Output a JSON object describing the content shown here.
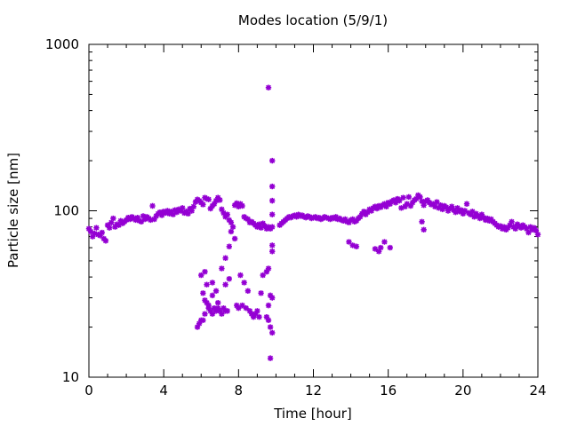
{
  "chart_data": {
    "type": "scatter",
    "title": "Modes location (5/9/1)",
    "xlabel": "Time [hour]",
    "ylabel": "Particle size [nm]",
    "xlim": [
      0,
      24
    ],
    "ylim": [
      10,
      1000
    ],
    "yscale": "log",
    "grid": false,
    "legend": "none",
    "marker_color": "#9400d3",
    "x_ticks": [
      {
        "value": 0,
        "label": "0"
      },
      {
        "value": 4,
        "label": "4"
      },
      {
        "value": 8,
        "label": "8"
      },
      {
        "value": 12,
        "label": "12"
      },
      {
        "value": 16,
        "label": "16"
      },
      {
        "value": 20,
        "label": "20"
      },
      {
        "value": 24,
        "label": "24"
      }
    ],
    "y_ticks": [
      {
        "value": 10,
        "label": "10"
      },
      {
        "value": 100,
        "label": "100"
      },
      {
        "value": 1000,
        "label": "1000"
      }
    ],
    "series": [
      {
        "points": [
          [
            0.0,
            78
          ],
          [
            0.1,
            75
          ],
          [
            0.2,
            70
          ],
          [
            0.3,
            73
          ],
          [
            0.4,
            79
          ],
          [
            0.5,
            72
          ],
          [
            0.6,
            71
          ],
          [
            0.7,
            74
          ],
          [
            0.8,
            68
          ],
          [
            0.9,
            66
          ],
          [
            1.0,
            82
          ],
          [
            1.1,
            79
          ],
          [
            1.2,
            85
          ],
          [
            1.3,
            90
          ],
          [
            1.4,
            80
          ],
          [
            1.5,
            83
          ],
          [
            1.6,
            82
          ],
          [
            1.7,
            87
          ],
          [
            1.8,
            84
          ],
          [
            1.9,
            86
          ],
          [
            2.0,
            88
          ],
          [
            2.1,
            91
          ],
          [
            2.2,
            89
          ],
          [
            2.3,
            92
          ],
          [
            2.4,
            90
          ],
          [
            2.5,
            88
          ],
          [
            2.6,
            91
          ],
          [
            2.7,
            87
          ],
          [
            2.8,
            86
          ],
          [
            2.9,
            93
          ],
          [
            3.0,
            89
          ],
          [
            3.1,
            92
          ],
          [
            3.2,
            90
          ],
          [
            3.3,
            88
          ],
          [
            3.4,
            107
          ],
          [
            3.5,
            89
          ],
          [
            3.6,
            93
          ],
          [
            3.7,
            96
          ],
          [
            3.8,
            98
          ],
          [
            3.9,
            94
          ],
          [
            4.0,
            99
          ],
          [
            4.1,
            97
          ],
          [
            4.2,
            100
          ],
          [
            4.3,
            96
          ],
          [
            4.4,
            99
          ],
          [
            4.5,
            95
          ],
          [
            4.6,
            101
          ],
          [
            4.7,
            98
          ],
          [
            4.8,
            102
          ],
          [
            4.9,
            100
          ],
          [
            5.0,
            104
          ],
          [
            5.1,
            97
          ],
          [
            5.2,
            99
          ],
          [
            5.3,
            96
          ],
          [
            5.4,
            103
          ],
          [
            5.5,
            100
          ],
          [
            5.6,
            106
          ],
          [
            5.7,
            113
          ],
          [
            5.8,
            117
          ],
          [
            5.9,
            115
          ],
          [
            6.0,
            112
          ],
          [
            6.1,
            109
          ],
          [
            6.2,
            120
          ],
          [
            6.3,
            118
          ],
          [
            6.4,
            117
          ],
          [
            6.5,
            103
          ],
          [
            6.6,
            107
          ],
          [
            6.7,
            110
          ],
          [
            6.8,
            115
          ],
          [
            6.9,
            120
          ],
          [
            7.0,
            116
          ],
          [
            7.1,
            102
          ],
          [
            7.2,
            97
          ],
          [
            7.3,
            92
          ],
          [
            7.4,
            95
          ],
          [
            7.5,
            88
          ],
          [
            7.6,
            85
          ],
          [
            7.7,
            80
          ],
          [
            7.8,
            108
          ],
          [
            7.9,
            111
          ],
          [
            8.0,
            106
          ],
          [
            8.1,
            110
          ],
          [
            8.2,
            107
          ],
          [
            8.3,
            92
          ],
          [
            8.4,
            90
          ],
          [
            8.5,
            89
          ],
          [
            8.6,
            85
          ],
          [
            8.7,
            86
          ],
          [
            8.8,
            84
          ],
          [
            8.9,
            82
          ],
          [
            9.0,
            80
          ],
          [
            9.1,
            83
          ],
          [
            9.2,
            79
          ],
          [
            9.3,
            84
          ],
          [
            9.4,
            81
          ],
          [
            9.5,
            78
          ],
          [
            9.6,
            80
          ],
          [
            9.7,
            78
          ],
          [
            9.8,
            80
          ],
          [
            10.2,
            82
          ],
          [
            10.3,
            84
          ],
          [
            10.4,
            86
          ],
          [
            10.5,
            88
          ],
          [
            10.6,
            90
          ],
          [
            10.7,
            92
          ],
          [
            10.8,
            91
          ],
          [
            10.9,
            93
          ],
          [
            11.0,
            94
          ],
          [
            11.1,
            92
          ],
          [
            11.2,
            95
          ],
          [
            11.3,
            93
          ],
          [
            11.4,
            94
          ],
          [
            11.5,
            92
          ],
          [
            11.6,
            91
          ],
          [
            11.7,
            93
          ],
          [
            11.8,
            92
          ],
          [
            11.9,
            90
          ],
          [
            12.0,
            91
          ],
          [
            12.1,
            92
          ],
          [
            12.2,
            90
          ],
          [
            12.3,
            91
          ],
          [
            12.4,
            89
          ],
          [
            12.5,
            90
          ],
          [
            12.6,
            92
          ],
          [
            12.7,
            91
          ],
          [
            12.8,
            90
          ],
          [
            12.9,
            89
          ],
          [
            13.0,
            91
          ],
          [
            13.1,
            90
          ],
          [
            13.2,
            92
          ],
          [
            13.3,
            89
          ],
          [
            13.4,
            90
          ],
          [
            13.5,
            88
          ],
          [
            13.6,
            87
          ],
          [
            13.7,
            89
          ],
          [
            13.8,
            86
          ],
          [
            13.9,
            85
          ],
          [
            14.0,
            88
          ],
          [
            14.1,
            89
          ],
          [
            14.2,
            86
          ],
          [
            14.3,
            87
          ],
          [
            14.4,
            90
          ],
          [
            14.5,
            92
          ],
          [
            14.6,
            96
          ],
          [
            14.7,
            99
          ],
          [
            14.8,
            95
          ],
          [
            14.9,
            98
          ],
          [
            15.0,
            102
          ],
          [
            15.1,
            100
          ],
          [
            15.2,
            104
          ],
          [
            15.3,
            106
          ],
          [
            15.4,
            103
          ],
          [
            15.5,
            107
          ],
          [
            15.6,
            105
          ],
          [
            15.7,
            108
          ],
          [
            15.8,
            110
          ],
          [
            15.9,
            106
          ],
          [
            16.0,
            112
          ],
          [
            16.1,
            110
          ],
          [
            16.2,
            114
          ],
          [
            16.3,
            116
          ],
          [
            16.4,
            112
          ],
          [
            16.5,
            118
          ],
          [
            16.6,
            115
          ],
          [
            16.7,
            104
          ],
          [
            16.8,
            120
          ],
          [
            16.9,
            106
          ],
          [
            17.0,
            110
          ],
          [
            17.1,
            121
          ],
          [
            17.2,
            107
          ],
          [
            17.3,
            112
          ],
          [
            17.4,
            116
          ],
          [
            17.5,
            118
          ],
          [
            17.6,
            124
          ],
          [
            17.7,
            121
          ],
          [
            17.8,
            114
          ],
          [
            17.9,
            108
          ],
          [
            18.0,
            114
          ],
          [
            18.1,
            116
          ],
          [
            18.2,
            112
          ],
          [
            18.3,
            109
          ],
          [
            18.4,
            110
          ],
          [
            18.5,
            106
          ],
          [
            18.6,
            113
          ],
          [
            18.7,
            104
          ],
          [
            18.8,
            108
          ],
          [
            18.9,
            102
          ],
          [
            19.0,
            107
          ],
          [
            19.1,
            105
          ],
          [
            19.2,
            100
          ],
          [
            19.3,
            103
          ],
          [
            19.4,
            106
          ],
          [
            19.5,
            101
          ],
          [
            19.6,
            98
          ],
          [
            19.7,
            104
          ],
          [
            19.8,
            99
          ],
          [
            19.9,
            101
          ],
          [
            20.0,
            96
          ],
          [
            20.1,
            100
          ],
          [
            20.2,
            110
          ],
          [
            20.3,
            97
          ],
          [
            20.4,
            95
          ],
          [
            20.5,
            99
          ],
          [
            20.6,
            92
          ],
          [
            20.7,
            96
          ],
          [
            20.8,
            93
          ],
          [
            20.9,
            90
          ],
          [
            21.0,
            95
          ],
          [
            21.1,
            91
          ],
          [
            21.2,
            88
          ],
          [
            21.3,
            90
          ],
          [
            21.4,
            87
          ],
          [
            21.5,
            89
          ],
          [
            21.6,
            86
          ],
          [
            21.7,
            84
          ],
          [
            21.8,
            82
          ],
          [
            21.9,
            80
          ],
          [
            22.0,
            81
          ],
          [
            22.1,
            78
          ],
          [
            22.2,
            80
          ],
          [
            22.3,
            77
          ],
          [
            22.4,
            79
          ],
          [
            22.5,
            82
          ],
          [
            22.6,
            86
          ],
          [
            22.7,
            80
          ],
          [
            22.8,
            78
          ],
          [
            22.9,
            83
          ],
          [
            23.0,
            81
          ],
          [
            23.1,
            79
          ],
          [
            23.2,
            82
          ],
          [
            23.3,
            80
          ],
          [
            23.4,
            78
          ],
          [
            23.5,
            74
          ],
          [
            23.6,
            80
          ],
          [
            23.7,
            77
          ],
          [
            23.8,
            79
          ],
          [
            23.9,
            76
          ],
          [
            24.0,
            72
          ],
          [
            6.0,
            41
          ],
          [
            6.2,
            43
          ],
          [
            6.3,
            36
          ],
          [
            6.6,
            37
          ],
          [
            6.8,
            33
          ],
          [
            7.1,
            45
          ],
          [
            7.3,
            52
          ],
          [
            7.5,
            61
          ],
          [
            7.6,
            75
          ],
          [
            7.8,
            68
          ],
          [
            6.1,
            32
          ],
          [
            6.2,
            29
          ],
          [
            6.3,
            28
          ],
          [
            6.4,
            27
          ],
          [
            6.6,
            31
          ],
          [
            6.9,
            28
          ],
          [
            7.3,
            36
          ],
          [
            7.5,
            39
          ],
          [
            8.1,
            41
          ],
          [
            8.3,
            37
          ],
          [
            8.5,
            33
          ],
          [
            9.2,
            32
          ],
          [
            9.3,
            41
          ],
          [
            9.5,
            43
          ],
          [
            9.6,
            45
          ],
          [
            9.7,
            31
          ],
          [
            9.8,
            30
          ],
          [
            9.6,
            27
          ],
          [
            5.8,
            20
          ],
          [
            5.9,
            21
          ],
          [
            6.0,
            22
          ],
          [
            6.1,
            22
          ],
          [
            6.2,
            24
          ],
          [
            6.4,
            26
          ],
          [
            6.5,
            25
          ],
          [
            6.6,
            24
          ],
          [
            6.7,
            26
          ],
          [
            6.8,
            25
          ],
          [
            6.9,
            26
          ],
          [
            7.0,
            25
          ],
          [
            7.1,
            24
          ],
          [
            7.2,
            26
          ],
          [
            7.3,
            25
          ],
          [
            7.4,
            25
          ],
          [
            7.9,
            27
          ],
          [
            8.0,
            26
          ],
          [
            8.2,
            27
          ],
          [
            8.4,
            26
          ],
          [
            8.6,
            25
          ],
          [
            8.7,
            24
          ],
          [
            8.8,
            23
          ],
          [
            8.9,
            24
          ],
          [
            9.0,
            25
          ],
          [
            9.1,
            23
          ],
          [
            9.5,
            23
          ],
          [
            9.6,
            22
          ],
          [
            9.7,
            20
          ],
          [
            9.8,
            18.5
          ],
          [
            9.7,
            13
          ],
          [
            9.6,
            550
          ],
          [
            9.8,
            200
          ],
          [
            9.8,
            140
          ],
          [
            9.8,
            115
          ],
          [
            9.8,
            95
          ],
          [
            9.8,
            62
          ],
          [
            9.8,
            57
          ],
          [
            13.9,
            65
          ],
          [
            14.1,
            62
          ],
          [
            14.3,
            61
          ],
          [
            15.3,
            59
          ],
          [
            15.5,
            57
          ],
          [
            15.6,
            60
          ],
          [
            15.8,
            65
          ],
          [
            16.1,
            60
          ],
          [
            17.8,
            86
          ],
          [
            17.9,
            77
          ]
        ]
      }
    ]
  }
}
